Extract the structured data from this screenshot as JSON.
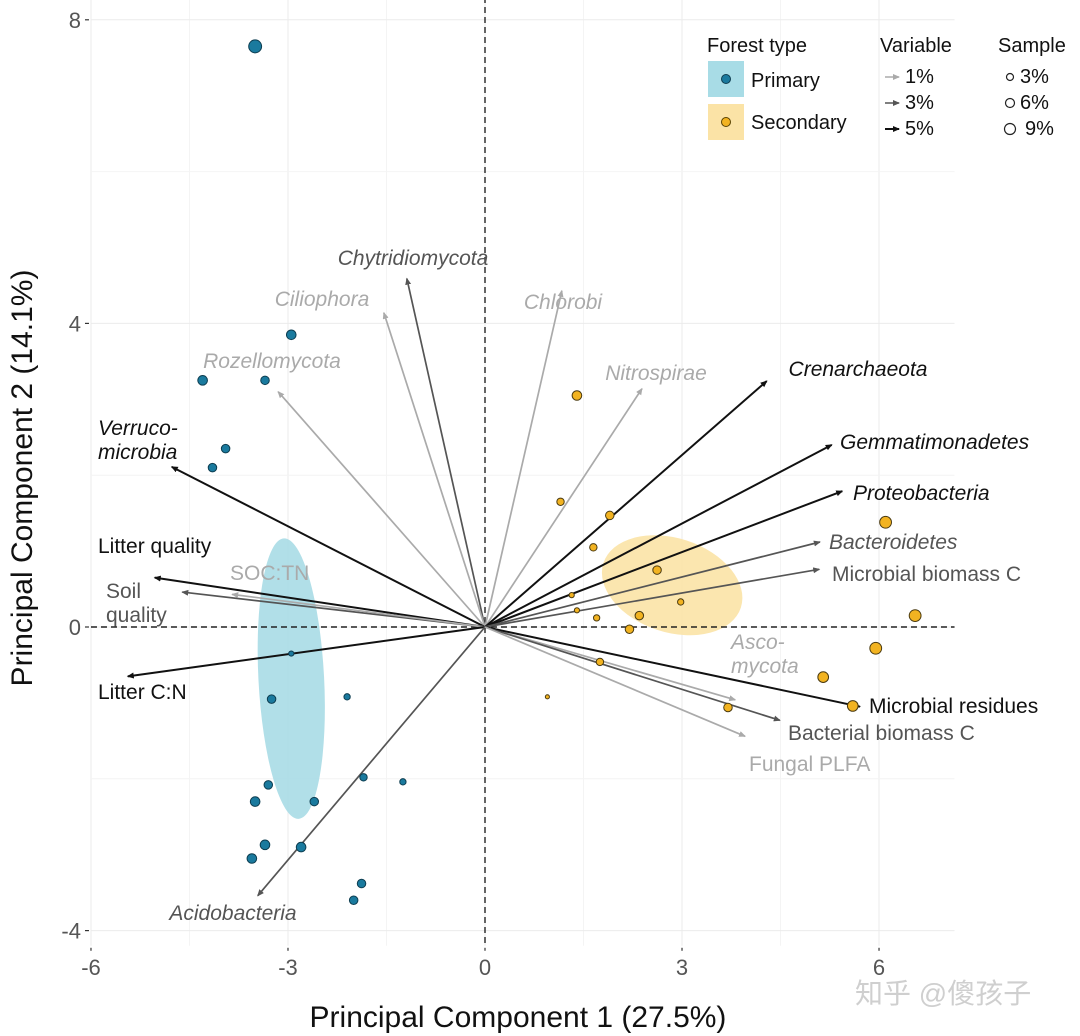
{
  "chart_data": {
    "type": "scatter",
    "subtype": "pca-biplot",
    "xlabel": "Principal Component 1 (27.5%)",
    "ylabel": "Principal Component 2 (14.1%)",
    "xlim": [
      -6.0,
      7.15
    ],
    "ylim": [
      -4.2,
      8.3
    ],
    "xticks": [
      -6,
      -3,
      0,
      3,
      6
    ],
    "yticks": [
      -4,
      0,
      4,
      8
    ],
    "xtick_labels": [
      "-6",
      "-3",
      "0",
      "3",
      "6"
    ],
    "ytick_labels": [
      "-4",
      "0",
      "4",
      "8"
    ],
    "grid": true,
    "reference_lines": {
      "x": 0,
      "y": 0,
      "style": "dashed"
    },
    "legend": {
      "position": "top-right",
      "forest_type": {
        "title": "Forest type",
        "items": [
          {
            "label": "Primary",
            "point_color": "#1a7a9e",
            "ellipse_color": "#a8dce6"
          },
          {
            "label": "Secondary",
            "point_color": "#f2b321",
            "ellipse_color": "#fbe3a6"
          }
        ]
      },
      "variable": {
        "title": "Variable",
        "items": [
          {
            "label": "1%",
            "color": "#aaaaaa"
          },
          {
            "label": "3%",
            "color": "#555555"
          },
          {
            "label": "5%",
            "color": "#111111"
          }
        ]
      },
      "sample": {
        "title": "Sample",
        "items": [
          {
            "label": "3%",
            "size": 3
          },
          {
            "label": "6%",
            "size": 6
          },
          {
            "label": "9%",
            "size": 9
          }
        ]
      }
    },
    "ellipses": [
      {
        "group": "Primary",
        "center": [
          -2.95,
          -0.68
        ],
        "rx": 0.5,
        "ry": 1.85,
        "angle_deg": -3
      },
      {
        "group": "Secondary",
        "center": [
          2.85,
          0.55
        ],
        "rx": 1.1,
        "ry": 0.62,
        "angle_deg": 18
      }
    ],
    "series": [
      {
        "name": "Primary",
        "points": [
          {
            "x": -3.5,
            "y": 7.65,
            "size": 9
          },
          {
            "x": -2.95,
            "y": 3.85,
            "size": 6
          },
          {
            "x": -4.3,
            "y": 3.25,
            "size": 6
          },
          {
            "x": -3.35,
            "y": 3.25,
            "size": 5
          },
          {
            "x": -3.95,
            "y": 2.35,
            "size": 5
          },
          {
            "x": -4.15,
            "y": 2.1,
            "size": 5
          },
          {
            "x": -2.95,
            "y": -0.35,
            "size": 2
          },
          {
            "x": -3.25,
            "y": -0.95,
            "size": 5
          },
          {
            "x": -2.1,
            "y": -0.92,
            "size": 3
          },
          {
            "x": -3.3,
            "y": -2.08,
            "size": 5
          },
          {
            "x": -3.5,
            "y": -2.3,
            "size": 6
          },
          {
            "x": -2.6,
            "y": -2.3,
            "size": 5
          },
          {
            "x": -1.85,
            "y": -1.98,
            "size": 4
          },
          {
            "x": -1.25,
            "y": -2.04,
            "size": 3
          },
          {
            "x": -3.35,
            "y": -2.87,
            "size": 6
          },
          {
            "x": -2.8,
            "y": -2.9,
            "size": 6
          },
          {
            "x": -3.55,
            "y": -3.05,
            "size": 6
          },
          {
            "x": -1.88,
            "y": -3.38,
            "size": 5
          },
          {
            "x": -2.0,
            "y": -3.6,
            "size": 5
          }
        ]
      },
      {
        "name": "Secondary",
        "points": [
          {
            "x": 1.4,
            "y": 3.05,
            "size": 6
          },
          {
            "x": 1.15,
            "y": 1.65,
            "size": 4
          },
          {
            "x": 1.9,
            "y": 1.47,
            "size": 5
          },
          {
            "x": 1.65,
            "y": 1.05,
            "size": 4
          },
          {
            "x": 2.62,
            "y": 0.75,
            "size": 5
          },
          {
            "x": 1.32,
            "y": 0.42,
            "size": 2
          },
          {
            "x": 2.98,
            "y": 0.33,
            "size": 3
          },
          {
            "x": 1.4,
            "y": 0.22,
            "size": 2
          },
          {
            "x": 1.7,
            "y": 0.12,
            "size": 3
          },
          {
            "x": 2.35,
            "y": 0.15,
            "size": 5
          },
          {
            "x": 2.2,
            "y": -0.03,
            "size": 5
          },
          {
            "x": 1.75,
            "y": -0.46,
            "size": 4
          },
          {
            "x": 0.95,
            "y": -0.92,
            "size": 1
          },
          {
            "x": 6.1,
            "y": 1.38,
            "size": 8
          },
          {
            "x": 6.55,
            "y": 0.15,
            "size": 8
          },
          {
            "x": 5.95,
            "y": -0.28,
            "size": 8
          },
          {
            "x": 5.15,
            "y": -0.66,
            "size": 7
          },
          {
            "x": 3.7,
            "y": -1.06,
            "size": 5
          },
          {
            "x": 5.6,
            "y": -1.04,
            "size": 7
          }
        ]
      }
    ],
    "variables": [
      {
        "name": "Chytridiomycota",
        "x": -1.19,
        "y": 4.59,
        "weight": "3%",
        "italic": true
      },
      {
        "name": "Ciliophora",
        "x": -1.54,
        "y": 4.14,
        "weight": "1%",
        "italic": true
      },
      {
        "name": "Rozellomycota",
        "x": -3.15,
        "y": 3.1,
        "weight": "1%",
        "italic": true
      },
      {
        "name": "Verruco-\nmicrobia",
        "x": -4.77,
        "y": 2.11,
        "weight": "5%",
        "italic": true
      },
      {
        "name": "Litter quality",
        "x": -5.03,
        "y": 0.65,
        "weight": "5%",
        "italic": false
      },
      {
        "name": "Soil\nquality",
        "x": -4.61,
        "y": 0.46,
        "weight": "3%",
        "italic": false
      },
      {
        "name": "SOC:TN",
        "x": -3.85,
        "y": 0.43,
        "weight": "1%",
        "italic": false
      },
      {
        "name": "Litter C:N",
        "x": -5.44,
        "y": -0.65,
        "weight": "5%",
        "italic": false
      },
      {
        "name": "Acidobacteria",
        "x": -3.46,
        "y": -3.54,
        "weight": "3%",
        "italic": true
      },
      {
        "name": "Chlorobi",
        "x": 1.17,
        "y": 4.43,
        "weight": "1%",
        "italic": true
      },
      {
        "name": "Nitrospirae",
        "x": 2.39,
        "y": 3.14,
        "weight": "1%",
        "italic": true
      },
      {
        "name": "Crenarchaeota",
        "x": 4.29,
        "y": 3.24,
        "weight": "5%",
        "italic": true
      },
      {
        "name": "Gemmatimonadetes",
        "x": 5.28,
        "y": 2.4,
        "weight": "5%",
        "italic": true
      },
      {
        "name": "Proteobacteria",
        "x": 5.44,
        "y": 1.79,
        "weight": "5%",
        "italic": true
      },
      {
        "name": "Bacteroidetes",
        "x": 5.1,
        "y": 1.12,
        "weight": "3%",
        "italic": true
      },
      {
        "name": "Microbial biomass C",
        "x": 5.09,
        "y": 0.76,
        "weight": "3%",
        "italic": false
      },
      {
        "name": "Asco-\nmycota",
        "x": 3.81,
        "y": -0.96,
        "weight": "1%",
        "italic": true
      },
      {
        "name": "Microbial residues",
        "x": 5.71,
        "y": -1.05,
        "weight": "5%",
        "italic": false
      },
      {
        "name": "Bacterial biomass C",
        "x": 4.49,
        "y": -1.23,
        "weight": "3%",
        "italic": false
      },
      {
        "name": "Fungal PLFA",
        "x": 3.96,
        "y": -1.44,
        "weight": "1%",
        "italic": false
      }
    ]
  },
  "watermark": "知乎 @傻孩子"
}
